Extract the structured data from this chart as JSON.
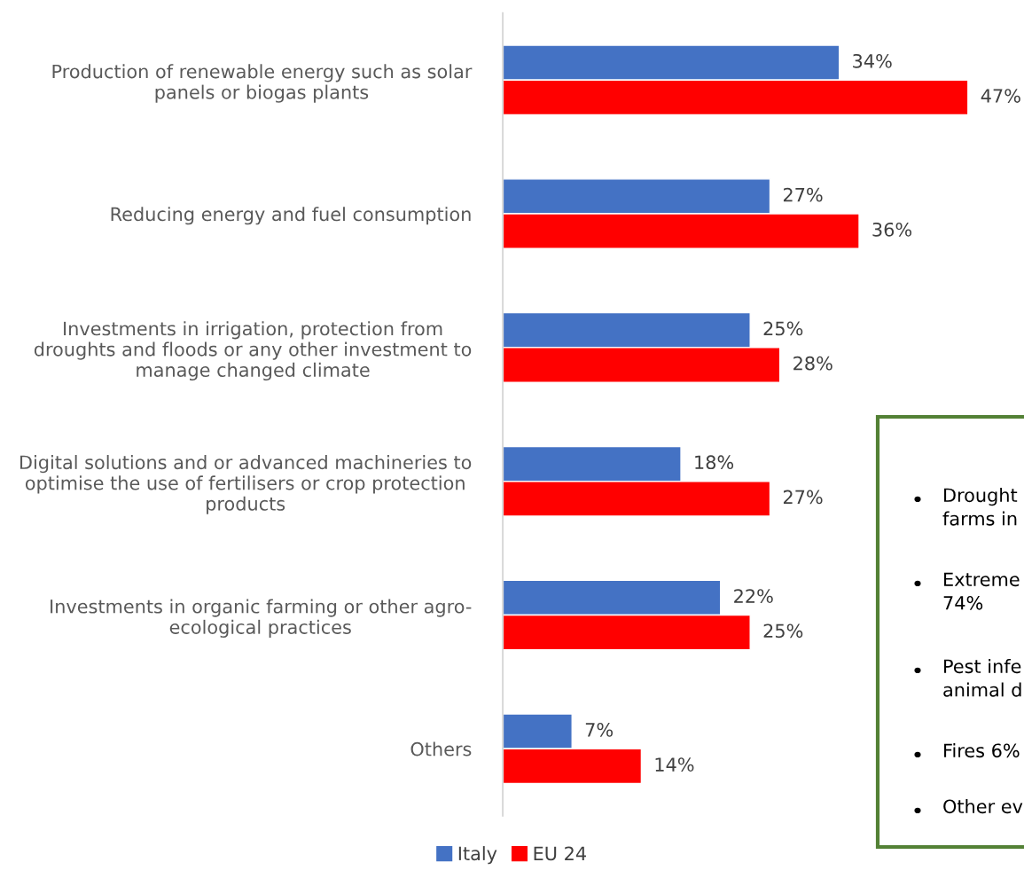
{
  "chart_data": {
    "type": "bar",
    "orientation": "horizontal",
    "categories": [
      "Production of renewable energy such as solar\npanels or biogas plants",
      "Reducing energy and fuel consumption",
      "Investments in irrigation, protection from\ndroughts and floods or any other investment to\nmanage changed climate",
      "Digital solutions and or advanced machineries to\noptimise the use of fertilisers or crop protection\nproducts",
      "Investments in organic farming or other agro-\necological practices",
      "Others"
    ],
    "series": [
      {
        "name": "Italy",
        "color": "#4472c4",
        "values": [
          34,
          27,
          25,
          18,
          22,
          7
        ],
        "value_labels": [
          "34%",
          "27%",
          "25%",
          "18%",
          "22%",
          "7%"
        ]
      },
      {
        "name": "EU 24",
        "color": "#ff0000",
        "values": [
          47,
          36,
          28,
          27,
          25,
          14
        ],
        "value_labels": [
          "47%",
          "36%",
          "28%",
          "27%",
          "25%",
          "14%"
        ]
      }
    ],
    "tick_labels": "y",
    "grid": false,
    "legend": "bottom",
    "annotations": [
      "Drought\nfarms in",
      "Extreme\n74%",
      "Pest infe\nanimal d",
      "Fires 6%",
      "Other ev"
    ]
  }
}
